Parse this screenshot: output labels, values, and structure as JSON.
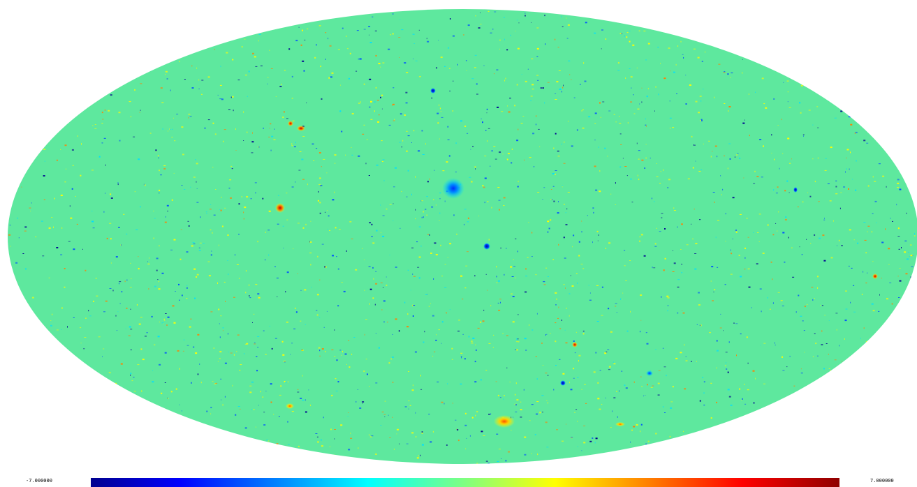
{
  "map": {
    "projection": "mollweide",
    "colormap": "jet",
    "background_value_color": "#5ee89e",
    "colors": {
      "dark_blue": "#00008f",
      "blue": "#0050ff",
      "cyan": "#00dfff",
      "green": "#5ee89e",
      "yellow": "#ffff00",
      "orange": "#ff8000",
      "red": "#8f0000"
    }
  },
  "colorbar": {
    "min_label": "-7.000000",
    "max_label": "7.000000",
    "min_value": -7,
    "max_value": 7
  },
  "features": [
    {
      "name": "central-blue-source",
      "lon": -2,
      "lat": 20,
      "value": -5
    },
    {
      "name": "south-yellow-source",
      "lon": 10,
      "lat": -55,
      "value": 4
    },
    {
      "name": "left-red-source",
      "lon": -60,
      "lat": 12,
      "value": 6
    },
    {
      "name": "small-blue-source",
      "lon": 5,
      "lat": 5,
      "value": -6
    }
  ]
}
